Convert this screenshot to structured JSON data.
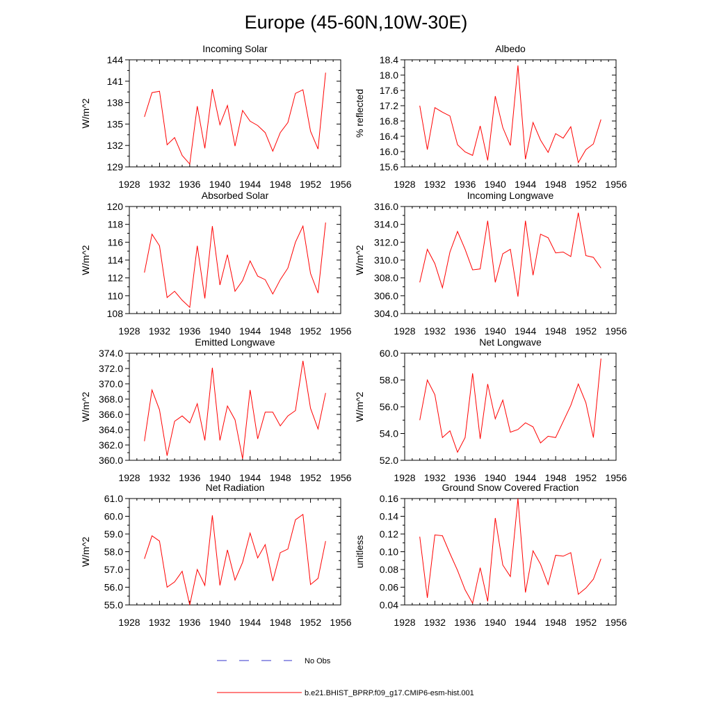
{
  "figure": {
    "title": "Europe (45-60N,10W-30E)"
  },
  "legend": {
    "entries": [
      {
        "label": "No Obs",
        "color": "#3333cc",
        "style": "dashed"
      },
      {
        "label": "b.e21.BHIST_BPRP.f09_g17.CMIP6-esm-hist.001",
        "color": "#ff0000",
        "style": "solid"
      }
    ]
  },
  "colors": {
    "series": "#ff0000",
    "obs": "#3333cc",
    "frame": "#000000"
  },
  "chart_data": [
    {
      "type": "line",
      "title": "Incoming Solar",
      "ylabel": "W/m^2",
      "xlim": [
        1928,
        1956
      ],
      "ylim": [
        129,
        144
      ],
      "xticks": [
        "1928",
        "1932",
        "1936",
        "1940",
        "1944",
        "1948",
        "1952",
        "1956"
      ],
      "yticks": [
        "129",
        "132",
        "135",
        "138",
        "141",
        "144"
      ],
      "x": [
        1930,
        1931,
        1932,
        1933,
        1934,
        1935,
        1936,
        1937,
        1938,
        1939,
        1940,
        1941,
        1942,
        1943,
        1944,
        1945,
        1946,
        1947,
        1948,
        1949,
        1950,
        1951,
        1952,
        1953,
        1954
      ],
      "series": [
        {
          "name": "b.e21.BHIST_BPRP.f09_g17.CMIP6-esm-hist.001",
          "values": [
            136.0,
            139.4,
            139.6,
            132.1,
            133.1,
            130.6,
            129.4,
            137.5,
            131.6,
            139.9,
            134.9,
            137.6,
            131.9,
            136.9,
            135.4,
            134.8,
            133.8,
            131.2,
            133.8,
            135.2,
            139.3,
            139.8,
            134.0,
            131.5,
            142.2
          ]
        }
      ]
    },
    {
      "type": "line",
      "title": "Albedo",
      "ylabel": "% reflected",
      "xlim": [
        1928,
        1956
      ],
      "ylim": [
        15.6,
        18.4
      ],
      "xticks": [
        "1928",
        "1932",
        "1936",
        "1940",
        "1944",
        "1948",
        "1952",
        "1956"
      ],
      "yticks": [
        "15.6",
        "16.0",
        "16.4",
        "16.8",
        "17.2",
        "17.6",
        "18.0",
        "18.4"
      ],
      "x": [
        1930,
        1931,
        1932,
        1933,
        1934,
        1935,
        1936,
        1937,
        1938,
        1939,
        1940,
        1941,
        1942,
        1943,
        1944,
        1945,
        1946,
        1947,
        1948,
        1949,
        1950,
        1951,
        1952,
        1953,
        1954
      ],
      "series": [
        {
          "name": "b.e21.BHIST_BPRP.f09_g17.CMIP6-esm-hist.001",
          "values": [
            17.2,
            16.05,
            17.15,
            17.03,
            16.93,
            16.18,
            15.99,
            15.9,
            16.67,
            15.77,
            17.45,
            16.63,
            16.16,
            18.25,
            15.8,
            16.76,
            16.3,
            15.98,
            16.47,
            16.35,
            16.65,
            15.71,
            16.05,
            16.2,
            16.84
          ]
        }
      ]
    },
    {
      "type": "line",
      "title": "Absorbed Solar",
      "ylabel": "W/m^2",
      "xlim": [
        1928,
        1956
      ],
      "ylim": [
        108,
        120
      ],
      "xticks": [
        "1928",
        "1932",
        "1936",
        "1940",
        "1944",
        "1948",
        "1952",
        "1956"
      ],
      "yticks": [
        "108",
        "110",
        "112",
        "114",
        "116",
        "118",
        "120"
      ],
      "x": [
        1930,
        1931,
        1932,
        1933,
        1934,
        1935,
        1936,
        1937,
        1938,
        1939,
        1940,
        1941,
        1942,
        1943,
        1944,
        1945,
        1946,
        1947,
        1948,
        1949,
        1950,
        1951,
        1952,
        1953,
        1954
      ],
      "series": [
        {
          "name": "b.e21.BHIST_BPRP.f09_g17.CMIP6-esm-hist.001",
          "values": [
            112.6,
            116.9,
            115.6,
            109.8,
            110.5,
            109.5,
            108.7,
            115.6,
            109.7,
            117.8,
            111.2,
            114.6,
            110.5,
            111.7,
            113.9,
            112.2,
            111.8,
            110.2,
            111.8,
            113.1,
            116.0,
            117.8,
            112.5,
            110.3,
            118.2
          ]
        }
      ]
    },
    {
      "type": "line",
      "title": "Incoming Longwave",
      "ylabel": "W/m^2",
      "xlim": [
        1928,
        1956
      ],
      "ylim": [
        304.0,
        316.0
      ],
      "xticks": [
        "1928",
        "1932",
        "1936",
        "1940",
        "1944",
        "1948",
        "1952",
        "1956"
      ],
      "yticks": [
        "304.0",
        "306.0",
        "308.0",
        "310.0",
        "312.0",
        "314.0",
        "316.0"
      ],
      "x": [
        1930,
        1931,
        1932,
        1933,
        1934,
        1935,
        1936,
        1937,
        1938,
        1939,
        1940,
        1941,
        1942,
        1943,
        1944,
        1945,
        1946,
        1947,
        1948,
        1949,
        1950,
        1951,
        1952,
        1953,
        1954
      ],
      "series": [
        {
          "name": "b.e21.BHIST_BPRP.f09_g17.CMIP6-esm-hist.001",
          "values": [
            307.5,
            311.2,
            309.6,
            306.9,
            310.9,
            313.2,
            311.2,
            308.9,
            309.0,
            314.4,
            307.5,
            310.7,
            311.2,
            305.9,
            314.4,
            308.3,
            312.9,
            312.5,
            310.8,
            310.9,
            310.4,
            315.3,
            310.5,
            310.3,
            309.1
          ]
        }
      ]
    },
    {
      "type": "line",
      "title": "Emitted Longwave",
      "ylabel": "W/m^2",
      "xlim": [
        1928,
        1956
      ],
      "ylim": [
        360.0,
        374.0
      ],
      "xticks": [
        "1928",
        "1932",
        "1936",
        "1940",
        "1944",
        "1948",
        "1952",
        "1956"
      ],
      "yticks": [
        "360.0",
        "362.0",
        "364.0",
        "366.0",
        "368.0",
        "370.0",
        "372.0",
        "374.0"
      ],
      "x": [
        1930,
        1931,
        1932,
        1933,
        1934,
        1935,
        1936,
        1937,
        1938,
        1939,
        1940,
        1941,
        1942,
        1943,
        1944,
        1945,
        1946,
        1947,
        1948,
        1949,
        1950,
        1951,
        1952,
        1953,
        1954
      ],
      "series": [
        {
          "name": "b.e21.BHIST_BPRP.f09_g17.CMIP6-esm-hist.001",
          "values": [
            362.5,
            369.2,
            366.6,
            360.6,
            365.1,
            365.8,
            364.9,
            367.4,
            362.6,
            372.1,
            362.6,
            367.1,
            365.3,
            360.2,
            369.2,
            362.8,
            366.3,
            366.3,
            364.5,
            365.8,
            366.5,
            373.0,
            366.8,
            364.1,
            368.8
          ]
        }
      ]
    },
    {
      "type": "line",
      "title": "Net Longwave",
      "ylabel": "W/m^2",
      "xlim": [
        1928,
        1956
      ],
      "ylim": [
        52.0,
        60.0
      ],
      "xticks": [
        "1928",
        "1932",
        "1936",
        "1940",
        "1944",
        "1948",
        "1952",
        "1956"
      ],
      "yticks": [
        "52.0",
        "54.0",
        "56.0",
        "58.0",
        "60.0"
      ],
      "x": [
        1930,
        1931,
        1932,
        1933,
        1934,
        1935,
        1936,
        1937,
        1938,
        1939,
        1940,
        1941,
        1942,
        1943,
        1944,
        1945,
        1946,
        1947,
        1948,
        1949,
        1950,
        1951,
        1952,
        1953,
        1954
      ],
      "series": [
        {
          "name": "b.e21.BHIST_BPRP.f09_g17.CMIP6-esm-hist.001",
          "values": [
            55.0,
            58.0,
            56.9,
            53.7,
            54.2,
            52.6,
            53.7,
            58.5,
            53.6,
            57.7,
            55.1,
            56.5,
            54.1,
            54.3,
            54.8,
            54.5,
            53.3,
            53.8,
            53.7,
            54.9,
            56.1,
            57.7,
            56.3,
            53.7,
            59.6
          ]
        }
      ]
    },
    {
      "type": "line",
      "title": "Net Radiation",
      "ylabel": "W/m^2",
      "xlim": [
        1928,
        1956
      ],
      "ylim": [
        55.0,
        61.0
      ],
      "xticks": [
        "1928",
        "1932",
        "1936",
        "1940",
        "1944",
        "1948",
        "1952",
        "1956"
      ],
      "yticks": [
        "55.0",
        "56.0",
        "57.0",
        "58.0",
        "59.0",
        "60.0",
        "61.0"
      ],
      "x": [
        1930,
        1931,
        1932,
        1933,
        1934,
        1935,
        1936,
        1937,
        1938,
        1939,
        1940,
        1941,
        1942,
        1943,
        1944,
        1945,
        1946,
        1947,
        1948,
        1949,
        1950,
        1951,
        1952,
        1953,
        1954
      ],
      "series": [
        {
          "name": "b.e21.BHIST_BPRP.f09_g17.CMIP6-esm-hist.001",
          "values": [
            57.6,
            58.9,
            58.6,
            56.0,
            56.3,
            56.9,
            55.0,
            57.0,
            56.1,
            60.05,
            56.1,
            58.1,
            56.4,
            57.4,
            59.05,
            57.65,
            58.4,
            56.35,
            57.95,
            58.15,
            59.8,
            60.1,
            56.15,
            56.5,
            58.6
          ]
        }
      ]
    },
    {
      "type": "line",
      "title": "Ground Snow Covered Fraction",
      "ylabel": "unitless",
      "xlim": [
        1928,
        1956
      ],
      "ylim": [
        0.04,
        0.16
      ],
      "xticks": [
        "1928",
        "1932",
        "1936",
        "1940",
        "1944",
        "1948",
        "1952",
        "1956"
      ],
      "yticks": [
        "0.04",
        "0.06",
        "0.08",
        "0.10",
        "0.12",
        "0.14",
        "0.16"
      ],
      "x": [
        1930,
        1931,
        1932,
        1933,
        1934,
        1935,
        1936,
        1937,
        1938,
        1939,
        1940,
        1941,
        1942,
        1943,
        1944,
        1945,
        1946,
        1947,
        1948,
        1949,
        1950,
        1951,
        1952,
        1953,
        1954
      ],
      "series": [
        {
          "name": "b.e21.BHIST_BPRP.f09_g17.CMIP6-esm-hist.001",
          "values": [
            0.117,
            0.048,
            0.119,
            0.118,
            0.098,
            0.079,
            0.057,
            0.042,
            0.082,
            0.044,
            0.138,
            0.085,
            0.072,
            0.16,
            0.054,
            0.101,
            0.086,
            0.063,
            0.096,
            0.095,
            0.099,
            0.052,
            0.059,
            0.069,
            0.092
          ]
        }
      ]
    }
  ]
}
